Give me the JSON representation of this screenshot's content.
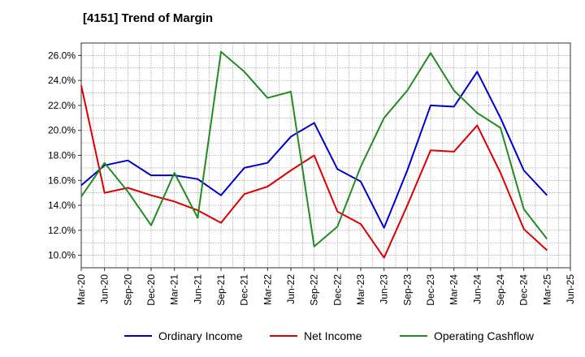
{
  "chart_data": {
    "type": "line",
    "title": "[4151]  Trend of Margin",
    "xlabel": "",
    "ylabel": "",
    "ylim": [
      9.0,
      27.0
    ],
    "yticks": [
      10.0,
      12.0,
      14.0,
      16.0,
      18.0,
      20.0,
      22.0,
      24.0,
      26.0
    ],
    "ytick_labels": [
      "10.0%",
      "12.0%",
      "14.0%",
      "16.0%",
      "18.0%",
      "20.0%",
      "22.0%",
      "24.0%",
      "26.0%"
    ],
    "categories": [
      "Mar-20",
      "Jun-20",
      "Sep-20",
      "Dec-20",
      "Mar-21",
      "Jun-21",
      "Sep-21",
      "Dec-21",
      "Mar-22",
      "Jun-22",
      "Sep-22",
      "Dec-22",
      "Mar-23",
      "Jun-23",
      "Sep-23",
      "Dec-23",
      "Mar-24",
      "Jun-24",
      "Sep-24",
      "Dec-24",
      "Mar-25",
      "Jun-25"
    ],
    "grid": true,
    "series": [
      {
        "name": "Ordinary Income",
        "color": "#0000cc",
        "values": [
          15.6,
          17.2,
          17.6,
          16.4,
          16.4,
          16.1,
          14.8,
          17.0,
          17.4,
          19.5,
          20.6,
          16.9,
          15.9,
          12.2,
          16.8,
          22.0,
          21.9,
          24.7,
          21.0,
          16.8,
          14.8,
          null
        ]
      },
      {
        "name": "Net Income",
        "color": "#dd0000",
        "values": [
          23.6,
          15.0,
          15.4,
          14.8,
          14.3,
          13.6,
          12.6,
          14.9,
          15.5,
          16.8,
          18.0,
          13.5,
          12.5,
          9.8,
          14.0,
          18.4,
          18.3,
          20.4,
          16.6,
          12.1,
          10.4,
          null
        ]
      },
      {
        "name": "Operating Cashflow",
        "color": "#228b22",
        "values": [
          14.7,
          17.4,
          15.1,
          12.4,
          16.6,
          13.0,
          26.3,
          24.7,
          22.6,
          23.1,
          10.7,
          12.3,
          17.1,
          21.0,
          23.2,
          26.2,
          23.2,
          21.4,
          20.2,
          13.7,
          11.3,
          null
        ]
      }
    ],
    "legend_position": "bottom"
  }
}
